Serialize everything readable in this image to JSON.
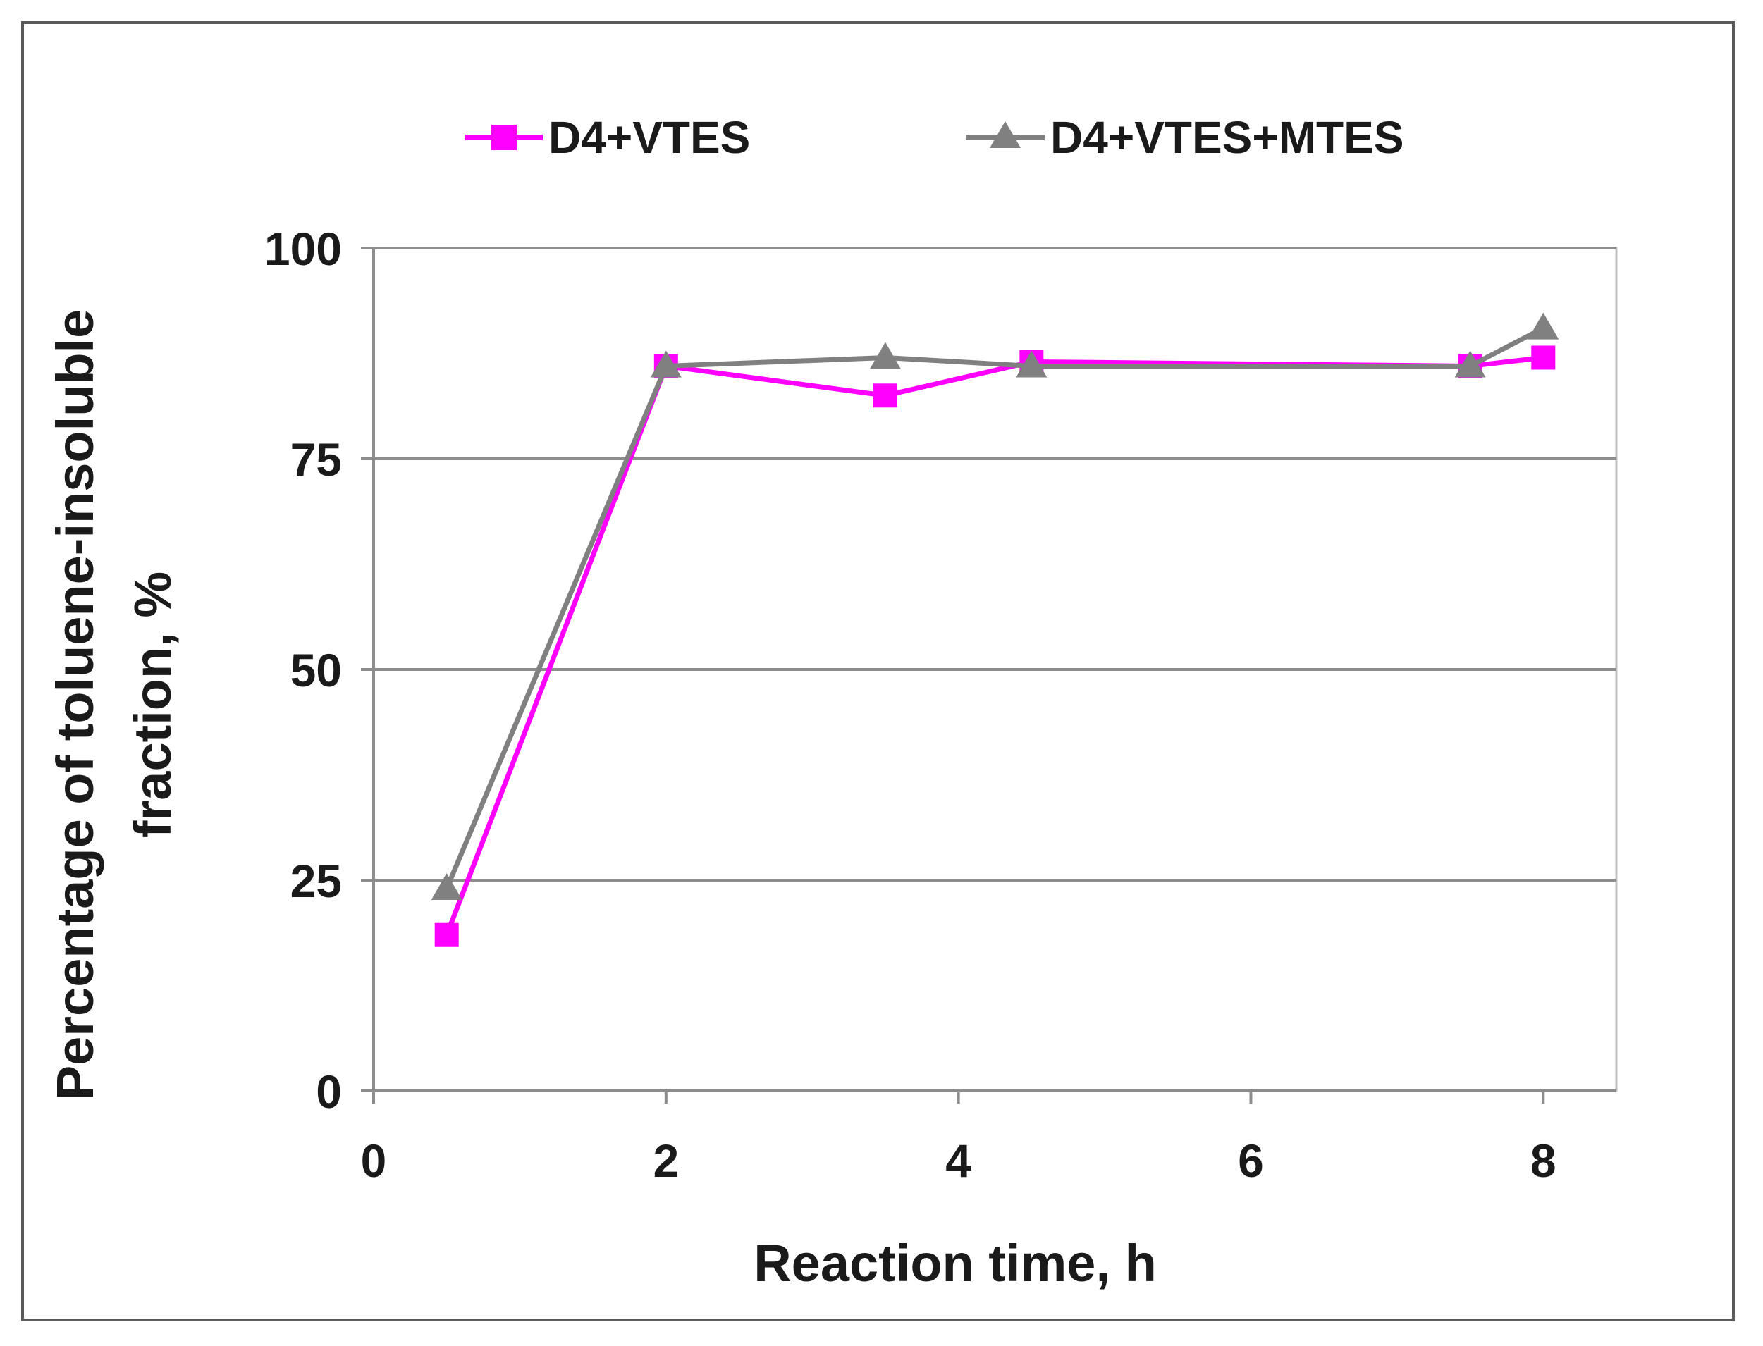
{
  "chart_data": {
    "type": "line",
    "title": "",
    "xlabel": "Reaction time, h",
    "ylabel_lines": [
      "Percentage of toluene-insoluble",
      "fraction, %"
    ],
    "xlim": [
      0,
      8.5
    ],
    "ylim": [
      0,
      100
    ],
    "xticks": [
      0,
      2,
      4,
      6,
      8
    ],
    "yticks": [
      0,
      25,
      50,
      75,
      100
    ],
    "grid": "horizontal",
    "legend_position": "top",
    "series": [
      {
        "name": "D4+VTES",
        "color": "#ff00ff",
        "marker": "square",
        "x": [
          0.5,
          2,
          3.5,
          4.5,
          7.5,
          8
        ],
        "y": [
          18.5,
          86,
          82.5,
          86.5,
          86,
          87
        ]
      },
      {
        "name": "D4+VTES+MTES",
        "color": "#808080",
        "marker": "triangle",
        "x": [
          0.5,
          2,
          3.5,
          4.5,
          7.5,
          8
        ],
        "y": [
          24,
          86,
          87,
          86,
          86,
          90.5
        ]
      }
    ]
  }
}
